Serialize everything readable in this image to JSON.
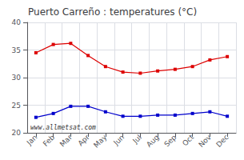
{
  "chart_data": {
    "type": "line",
    "title": "Puerto Carreño : temperatures (°C)",
    "categories": [
      "Jan",
      "Feb",
      "Mar",
      "Apr",
      "May",
      "Jun",
      "Jul",
      "Aug",
      "Sep",
      "Oct",
      "Nov",
      "Dec"
    ],
    "series": [
      {
        "color": "#dd0000",
        "marker": "square",
        "values": [
          34.5,
          36.0,
          36.2,
          34.0,
          32.0,
          31.0,
          30.8,
          31.2,
          31.5,
          32.0,
          33.2,
          33.8
        ]
      },
      {
        "color": "#0000cc",
        "marker": "square",
        "values": [
          22.8,
          23.5,
          24.8,
          24.8,
          23.8,
          23.0,
          23.0,
          23.2,
          23.2,
          23.5,
          23.8,
          23.0
        ]
      }
    ],
    "ylim": [
      20,
      40
    ],
    "yticks": [
      20,
      25,
      30,
      35,
      40
    ],
    "grid": true,
    "annotations": [
      "www.allmetsat.com"
    ]
  }
}
